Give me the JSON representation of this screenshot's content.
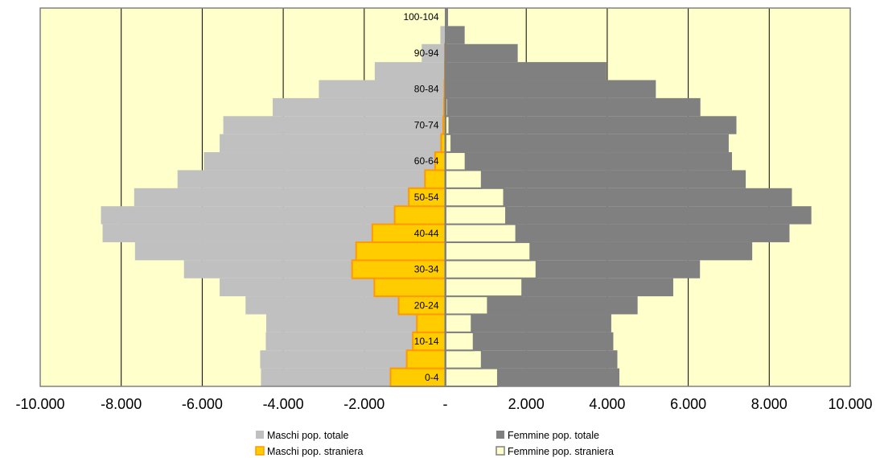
{
  "chart_data": {
    "type": "bar",
    "orientation": "horizontal",
    "stacking": "overlaid",
    "categories": [
      "0-4",
      "5-9",
      "10-14",
      "15-19",
      "20-24",
      "25-29",
      "30-34",
      "35-39",
      "40-44",
      "45-49",
      "50-54",
      "55-59",
      "60-64",
      "65-69",
      "70-74",
      "75-79",
      "80-84",
      "85-89",
      "90-94",
      "95-99",
      "100-104"
    ],
    "category_labels": [
      "0-4",
      "",
      "10-14",
      "",
      "20-24",
      "",
      "30-34",
      "",
      "40-44",
      "",
      "50-54",
      "",
      "60-64",
      "",
      "70-74",
      "",
      "80-84",
      "",
      "90-94",
      "",
      "100-104"
    ],
    "series": [
      {
        "name": "Maschi pop. totale",
        "color": "#C0C0C0",
        "values": [
          -4550,
          -4570,
          -4430,
          -4420,
          -4930,
          -5570,
          -6450,
          -7660,
          -8460,
          -8500,
          -7680,
          -6610,
          -5960,
          -5570,
          -5480,
          -4260,
          -3120,
          -1740,
          -580,
          -120,
          -10
        ]
      },
      {
        "name": "Femmine pop. totale",
        "color": "#808080",
        "values": [
          4300,
          4250,
          4150,
          4100,
          4750,
          5630,
          6290,
          7580,
          8500,
          9040,
          8560,
          7420,
          7080,
          7000,
          7190,
          6300,
          5200,
          3980,
          1790,
          480,
          70
        ]
      },
      {
        "name": "Maschi pop. straniera",
        "color": "#FFCC00",
        "border": "#FF9900",
        "values": [
          -1350,
          -950,
          -800,
          -700,
          -1150,
          -1750,
          -2300,
          -2200,
          -1800,
          -1250,
          -900,
          -500,
          -250,
          -100,
          -50,
          -30,
          -20,
          -10,
          -5,
          0,
          0
        ]
      },
      {
        "name": "Femmine pop. straniera",
        "color": "#FFFFCC",
        "border": "#808080",
        "values": [
          1300,
          900,
          700,
          650,
          1050,
          1900,
          2250,
          2100,
          1750,
          1500,
          1450,
          900,
          500,
          150,
          100,
          60,
          30,
          20,
          10,
          0,
          0
        ]
      }
    ],
    "x_ticks": [
      "-10.000",
      "-8.000",
      "-6.000",
      "-4.000",
      "-2.000",
      "-",
      "2.000",
      "4.000",
      "6.000",
      "8.000",
      "10.000"
    ],
    "xlim": [
      -10000,
      10000
    ],
    "grid": true,
    "plot_background": "#FFFFCC",
    "legend_position": "bottom",
    "title": "",
    "xlabel": "",
    "ylabel": ""
  }
}
